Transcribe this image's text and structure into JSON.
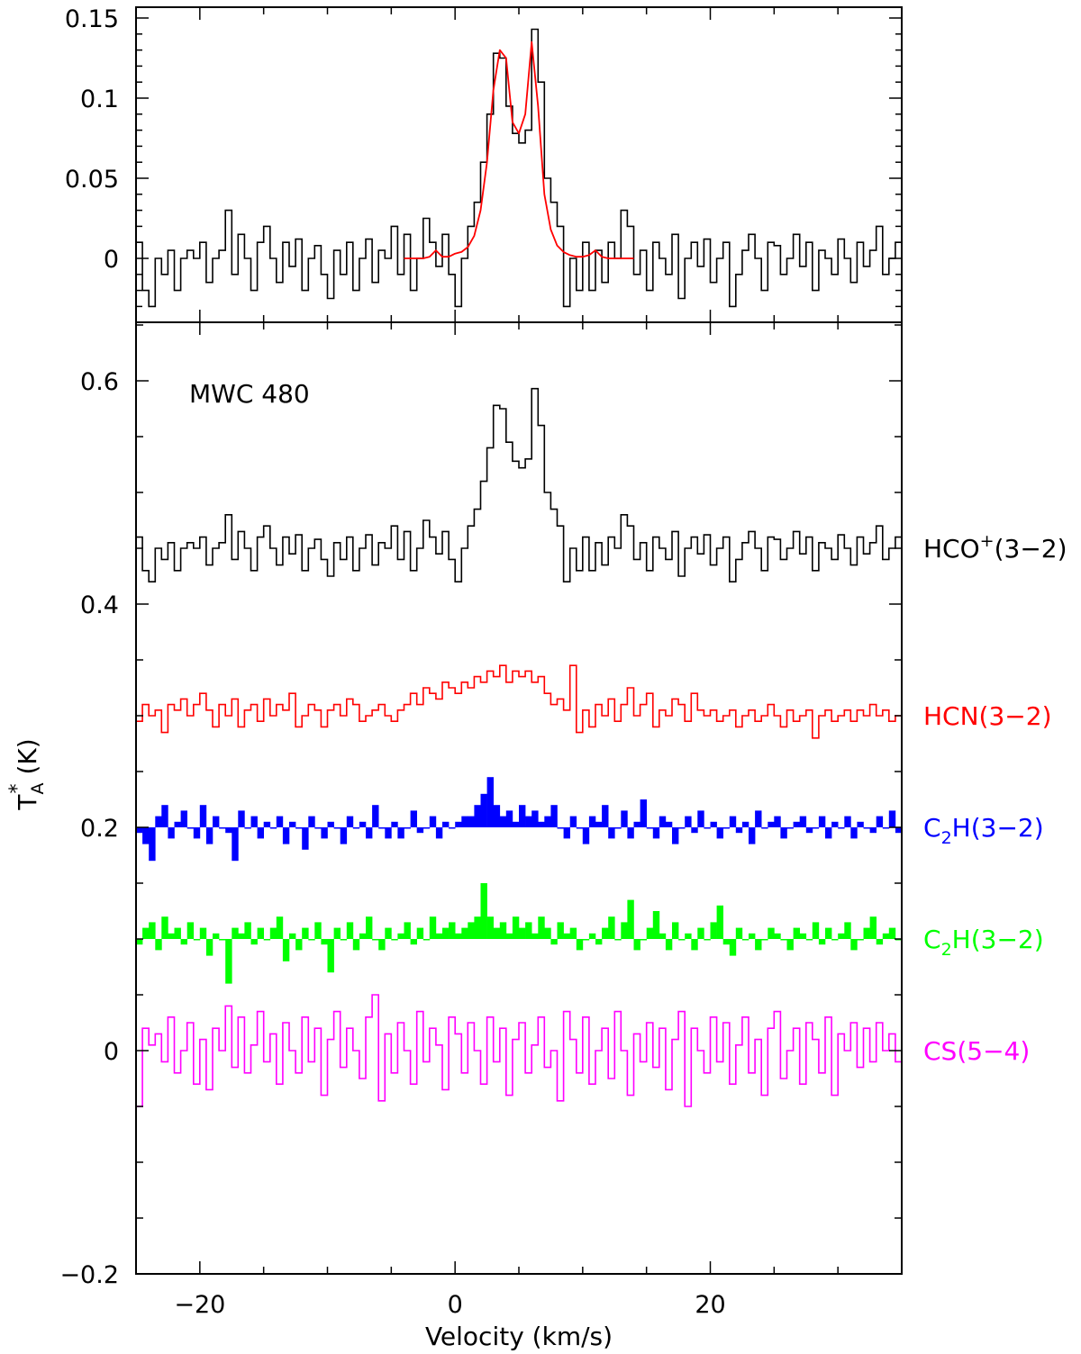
{
  "chart_data": {
    "type": "line",
    "title": "",
    "object_label": "MWC 480",
    "xlabel": "Velocity (km/s)",
    "ylabel": {
      "main": "T",
      "sub": "A",
      "sup": "*",
      "unit": "(K)"
    },
    "xlim": [
      -25,
      35
    ],
    "xticks": [
      -20,
      0,
      20
    ],
    "xtick_labels": [
      "−20",
      "0",
      "20"
    ],
    "channel_width_kms": 0.5,
    "v_start": -25,
    "top_panel": {
      "ylim": [
        -0.04,
        0.157
      ],
      "yticks": [
        0,
        0.05,
        0.1,
        0.15
      ],
      "ytick_labels": [
        "0",
        "0.05",
        "0.1",
        "0.15"
      ],
      "spectrum": {
        "name": "HCO+(3-2)",
        "color": "#000000",
        "values": [
          0.01,
          -0.02,
          -0.03,
          0.0,
          -0.01,
          0.005,
          -0.02,
          0.0,
          0.005,
          0.0,
          0.01,
          -0.015,
          0.0,
          0.005,
          0.03,
          -0.01,
          0.015,
          0.0,
          -0.02,
          0.01,
          0.02,
          0.0,
          -0.015,
          0.01,
          -0.005,
          0.012,
          -0.02,
          0.0,
          0.008,
          -0.01,
          -0.025,
          0.005,
          -0.01,
          0.01,
          -0.02,
          0.0,
          0.012,
          -0.015,
          0.005,
          0.0,
          0.02,
          -0.01,
          0.015,
          -0.02,
          0.0,
          0.025,
          0.01,
          -0.005,
          0.015,
          -0.01,
          -0.03,
          0.0,
          0.02,
          0.035,
          0.06,
          0.09,
          0.128,
          0.125,
          0.095,
          0.078,
          0.072,
          0.08,
          0.143,
          0.11,
          0.05,
          0.035,
          0.02,
          -0.03,
          0.0,
          -0.02,
          0.01,
          -0.02,
          0.005,
          -0.015,
          0.01,
          0.0,
          0.03,
          0.02,
          -0.01,
          0.005,
          -0.02,
          0.01,
          0.0,
          -0.01,
          0.015,
          -0.025,
          0.0,
          0.01,
          -0.005,
          0.012,
          -0.015,
          0.0,
          0.01,
          -0.03,
          -0.01,
          0.005,
          0.015,
          0.0,
          -0.02,
          0.01,
          0.008,
          -0.01,
          0.0,
          0.015,
          -0.005,
          0.01,
          -0.02,
          0.005,
          0.0,
          -0.01,
          0.012,
          0.0,
          -0.015,
          0.01,
          -0.005,
          0.005,
          0.02,
          -0.01,
          0.0,
          0.01
        ]
      },
      "fit": {
        "name": "model fit",
        "color": "#ff0000",
        "v_start": -4,
        "v_step": 0.5,
        "values": [
          0,
          0,
          0,
          0,
          0.001,
          0.005,
          0.001,
          0.001,
          0.003,
          0.004,
          0.007,
          0.014,
          0.03,
          0.06,
          0.105,
          0.13,
          0.125,
          0.085,
          0.078,
          0.09,
          0.135,
          0.095,
          0.04,
          0.018,
          0.008,
          0.004,
          0.002,
          0.001,
          0.001,
          0.002,
          0.005,
          0.001,
          0,
          0,
          0,
          0,
          0
        ]
      }
    },
    "bottom_panel": {
      "ylim": [
        -0.2,
        0.65
      ],
      "yticks": [
        -0.2,
        0,
        0.2,
        0.4,
        0.6
      ],
      "ytick_labels": [
        "−0.2",
        "0",
        "0.2",
        "0.4",
        "0.6"
      ],
      "series": [
        {
          "name": "HCO+(3-2)",
          "label_main": "HCO",
          "label_sup": "+",
          "label_rest": "(3−2)",
          "color": "#000000",
          "offset": 0.45,
          "style": "step",
          "same_as_top": true
        },
        {
          "name": "HCN(3-2)",
          "label_main": "HCN(3−2)",
          "color": "#ff0000",
          "offset": 0.3,
          "style": "step",
          "values": [
            -0.005,
            0.01,
            0.0,
            0.005,
            -0.015,
            0.01,
            0.005,
            0.015,
            0.0,
            0.01,
            0.02,
            0.005,
            -0.01,
            0.01,
            0.0,
            0.015,
            -0.01,
            0.005,
            0.01,
            -0.005,
            0.015,
            0.0,
            0.01,
            0.005,
            0.02,
            -0.01,
            0.0,
            0.01,
            0.005,
            -0.01,
            0.005,
            0.01,
            0.0,
            0.015,
            0.01,
            -0.005,
            0.0,
            0.005,
            0.01,
            0.0,
            -0.005,
            0.005,
            0.01,
            0.02,
            0.01,
            0.025,
            0.02,
            0.015,
            0.03,
            0.025,
            0.02,
            0.03,
            0.025,
            0.035,
            0.03,
            0.04,
            0.035,
            0.045,
            0.03,
            0.04,
            0.035,
            0.04,
            0.03,
            0.035,
            0.02,
            0.01,
            0.015,
            0.005,
            0.045,
            -0.015,
            0.005,
            -0.01,
            0.01,
            0.0,
            0.015,
            -0.005,
            0.01,
            0.025,
            0.0,
            0.01,
            0.02,
            -0.01,
            0.005,
            0.0,
            0.015,
            0.01,
            -0.005,
            0.02,
            0.005,
            0.0,
            0.005,
            -0.005,
            0.0,
            0.005,
            -0.01,
            0.0,
            0.005,
            -0.005,
            0.0,
            0.01,
            0.0,
            -0.01,
            0.005,
            -0.005,
            0.0,
            0.005,
            -0.02,
            0.0,
            0.005,
            -0.005,
            0.0,
            0.005,
            -0.005,
            0.005,
            0.0,
            0.01,
            0.0,
            0.005,
            -0.005,
            0.0
          ]
        },
        {
          "name": "C2H(3-2)",
          "label_main": "C",
          "label_sub": "2",
          "label_rest": "H(3−2)",
          "color": "#0000ff",
          "offset": 0.2,
          "style": "filled",
          "values": [
            -0.005,
            -0.015,
            -0.03,
            0.01,
            0.02,
            -0.01,
            0.005,
            0.015,
            0.0,
            -0.01,
            0.02,
            -0.015,
            0.01,
            0.0,
            -0.005,
            -0.03,
            0.015,
            0.0,
            0.01,
            -0.01,
            0.005,
            0.0,
            0.01,
            -0.015,
            0.005,
            0.0,
            -0.02,
            0.01,
            0.0,
            -0.01,
            0.005,
            0.0,
            -0.015,
            0.01,
            0.0,
            0.005,
            -0.01,
            0.02,
            0.0,
            -0.01,
            0.005,
            -0.01,
            0.0,
            0.015,
            -0.005,
            0.0,
            0.01,
            -0.01,
            0.005,
            0.0,
            0.005,
            0.01,
            0.01,
            0.02,
            0.03,
            0.045,
            0.02,
            0.01,
            0.015,
            0.005,
            0.02,
            0.01,
            0.015,
            0.005,
            0.01,
            0.02,
            0.0,
            -0.01,
            0.01,
            0.0,
            -0.015,
            0.01,
            0.005,
            0.02,
            -0.01,
            0.0,
            0.015,
            -0.01,
            0.005,
            0.025,
            0.0,
            -0.01,
            0.01,
            0.005,
            -0.015,
            0.0,
            0.01,
            -0.005,
            0.015,
            0.0,
            0.005,
            -0.01,
            0.0,
            0.01,
            -0.005,
            0.005,
            -0.015,
            0.015,
            0.0,
            0.005,
            0.01,
            -0.01,
            0.0,
            0.005,
            0.01,
            -0.005,
            0.0,
            0.01,
            -0.01,
            0.005,
            0.0,
            0.01,
            -0.01,
            0.005,
            0.0,
            -0.005,
            0.01,
            0.0,
            0.015,
            -0.005
          ]
        },
        {
          "name": "C2H(3-2)",
          "label_main": "C",
          "label_sub": "2",
          "label_rest": "H(3−2)",
          "color": "#00ff00",
          "offset": 0.1,
          "style": "filled",
          "values": [
            -0.005,
            0.01,
            0.015,
            -0.01,
            0.02,
            0.005,
            0.01,
            -0.005,
            0.015,
            0.0,
            0.01,
            -0.015,
            0.005,
            0.0,
            -0.04,
            0.01,
            0.005,
            0.015,
            -0.005,
            0.01,
            0.0,
            0.01,
            0.02,
            -0.02,
            0.005,
            -0.01,
            0.01,
            0.0,
            0.015,
            -0.005,
            -0.03,
            0.01,
            0.0,
            0.015,
            -0.01,
            0.005,
            0.02,
            0.0,
            -0.01,
            0.01,
            0.0,
            0.005,
            0.015,
            -0.005,
            0.01,
            0.0,
            0.02,
            0.005,
            0.01,
            0.015,
            0.005,
            0.01,
            0.015,
            0.02,
            0.05,
            0.02,
            0.01,
            0.015,
            0.005,
            0.02,
            0.01,
            0.015,
            0.005,
            0.02,
            0.01,
            -0.005,
            0.015,
            0.005,
            0.01,
            -0.01,
            0.0,
            0.005,
            -0.005,
            0.01,
            0.02,
            0.0,
            0.015,
            0.035,
            -0.01,
            0.0,
            0.01,
            0.025,
            0.005,
            -0.01,
            0.015,
            0.0,
            0.005,
            -0.01,
            0.01,
            0.0,
            0.015,
            0.03,
            -0.005,
            -0.015,
            0.01,
            0.0,
            0.005,
            -0.01,
            0.0,
            0.01,
            0.005,
            0.0,
            -0.01,
            0.01,
            0.005,
            0.0,
            0.015,
            -0.005,
            0.01,
            0.0,
            0.005,
            0.015,
            -0.01,
            0.0,
            0.01,
            0.02,
            -0.005,
            0.005,
            0.01,
            0.0
          ]
        },
        {
          "name": "CS(5-4)",
          "label_main": "CS(5−4)",
          "color": "#ff00ff",
          "offset": 0.0,
          "style": "step",
          "values": [
            -0.05,
            0.02,
            0.005,
            0.015,
            -0.01,
            0.03,
            -0.02,
            0.0,
            0.025,
            -0.03,
            0.01,
            -0.035,
            0.02,
            0.0,
            0.04,
            -0.015,
            0.03,
            -0.02,
            0.005,
            0.035,
            -0.01,
            0.015,
            -0.03,
            0.025,
            0.0,
            -0.02,
            0.03,
            -0.01,
            0.02,
            -0.04,
            0.01,
            0.035,
            -0.015,
            0.02,
            0.0,
            -0.025,
            0.03,
            0.05,
            -0.045,
            0.015,
            -0.02,
            0.025,
            0.0,
            -0.03,
            0.035,
            -0.01,
            0.02,
            0.005,
            -0.035,
            0.03,
            0.015,
            -0.02,
            0.025,
            0.0,
            -0.03,
            0.03,
            -0.01,
            0.02,
            -0.04,
            0.01,
            0.025,
            -0.02,
            0.005,
            0.03,
            -0.015,
            0.0,
            -0.045,
            0.035,
            0.01,
            -0.02,
            0.03,
            -0.03,
            0.0,
            0.02,
            -0.025,
            0.035,
            0.0,
            -0.04,
            0.015,
            -0.01,
            0.025,
            -0.015,
            0.02,
            -0.035,
            0.01,
            0.035,
            -0.05,
            0.02,
            0.0,
            -0.02,
            0.03,
            -0.01,
            0.025,
            -0.03,
            0.005,
            0.03,
            -0.02,
            0.01,
            -0.04,
            0.02,
            0.035,
            -0.025,
            0.0,
            0.02,
            -0.03,
            0.025,
            0.01,
            -0.02,
            0.03,
            -0.04,
            0.015,
            0.0,
            0.025,
            -0.015,
            0.02,
            -0.01,
            0.025,
            0.0,
            0.015,
            -0.01
          ]
        }
      ]
    }
  }
}
